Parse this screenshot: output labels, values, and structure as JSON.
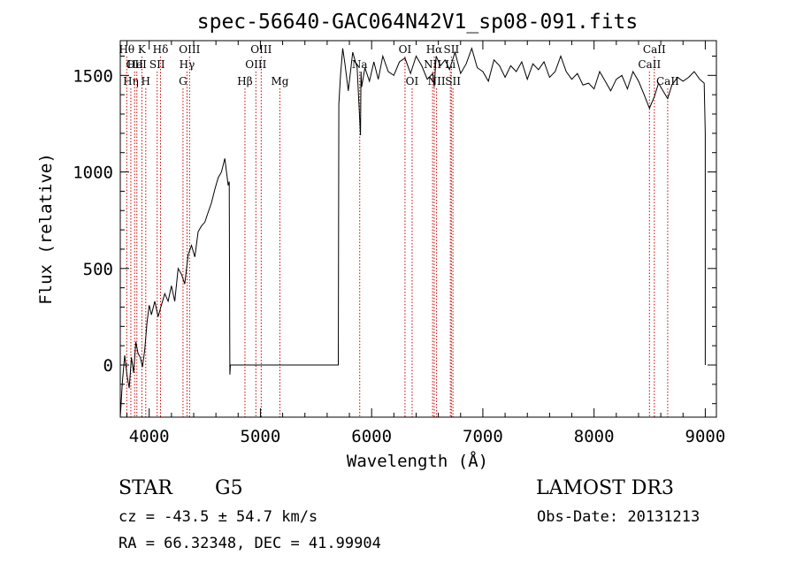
{
  "chart_data": {
    "type": "line",
    "title": "spec-56640-GAC064N42V1_sp08-091.fits",
    "xlabel": "Wavelength (Å)",
    "ylabel": "Flux (relative)",
    "xlim": [
      3740,
      9100
    ],
    "ylim": [
      -270,
      1680
    ],
    "xticks": [
      {
        "value": 4000,
        "label": "4000"
      },
      {
        "value": 5000,
        "label": "5000"
      },
      {
        "value": 6000,
        "label": "6000"
      },
      {
        "value": 7000,
        "label": "7000"
      },
      {
        "value": 8000,
        "label": "8000"
      },
      {
        "value": 9000,
        "label": "9000"
      }
    ],
    "yticks": [
      {
        "value": 0,
        "label": "0"
      },
      {
        "value": 500,
        "label": "500"
      },
      {
        "value": 1000,
        "label": "1000"
      },
      {
        "value": 1500,
        "label": "1500"
      }
    ],
    "line_color": "#000000",
    "marker_color": "#cc0000",
    "series": [
      {
        "name": "flux",
        "x": [
          3740,
          3760,
          3780,
          3800,
          3820,
          3840,
          3860,
          3880,
          3900,
          3920,
          3940,
          3960,
          3980,
          4000,
          4020,
          4050,
          4080,
          4110,
          4140,
          4170,
          4200,
          4230,
          4260,
          4290,
          4320,
          4350,
          4380,
          4410,
          4440,
          4470,
          4500,
          4530,
          4560,
          4590,
          4620,
          4650,
          4680,
          4710,
          4720,
          4725,
          4730,
          5700,
          5705,
          5720,
          5740,
          5760,
          5790,
          5830,
          5870,
          5900,
          5905,
          5910,
          5940,
          5980,
          6020,
          6060,
          6100,
          6150,
          6200,
          6250,
          6300,
          6350,
          6400,
          6450,
          6500,
          6550,
          6563,
          6580,
          6620,
          6660,
          6700,
          6750,
          6800,
          6850,
          6900,
          6950,
          7000,
          7050,
          7100,
          7150,
          7200,
          7250,
          7300,
          7350,
          7400,
          7450,
          7500,
          7550,
          7600,
          7650,
          7700,
          7750,
          7800,
          7850,
          7900,
          7950,
          8000,
          8050,
          8100,
          8150,
          8200,
          8250,
          8300,
          8350,
          8400,
          8450,
          8498,
          8542,
          8580,
          8620,
          8662,
          8700,
          8750,
          8800,
          8850,
          8900,
          8950,
          8990,
          9000,
          9000
        ],
        "y": [
          -270,
          -80,
          50,
          -50,
          -120,
          40,
          -40,
          120,
          60,
          40,
          -10,
          80,
          220,
          310,
          260,
          330,
          250,
          310,
          370,
          330,
          410,
          330,
          500,
          470,
          420,
          570,
          620,
          560,
          690,
          720,
          740,
          790,
          840,
          910,
          970,
          1000,
          1070,
          930,
          950,
          -50,
          0,
          0,
          1350,
          1500,
          1640,
          1560,
          1420,
          1620,
          1540,
          1190,
          1520,
          1440,
          1540,
          1470,
          1570,
          1480,
          1600,
          1520,
          1500,
          1570,
          1590,
          1510,
          1600,
          1550,
          1480,
          1510,
          1440,
          1600,
          1550,
          1580,
          1530,
          1620,
          1510,
          1560,
          1640,
          1540,
          1520,
          1470,
          1580,
          1550,
          1490,
          1550,
          1520,
          1570,
          1480,
          1560,
          1530,
          1570,
          1490,
          1520,
          1600,
          1520,
          1480,
          1510,
          1450,
          1460,
          1430,
          1520,
          1470,
          1420,
          1480,
          1500,
          1430,
          1520,
          1470,
          1400,
          1330,
          1390,
          1460,
          1420,
          1380,
          1450,
          1490,
          1470,
          1490,
          1520,
          1480,
          1460,
          1200,
          0
        ]
      }
    ],
    "line_markers": [
      {
        "wavelength": 3798,
        "label": "Hθ",
        "row": 1
      },
      {
        "wavelength": 3835,
        "label": "Hη",
        "row": 3
      },
      {
        "wavelength": 3869,
        "label": "OII",
        "row": 2
      },
      {
        "wavelength": 3889,
        "label": "HeI",
        "row": 2
      },
      {
        "wavelength": 3934,
        "label": "K",
        "row": 1
      },
      {
        "wavelength": 3969,
        "label": "H",
        "row": 3
      },
      {
        "wavelength": 4072,
        "label": "SII",
        "row": 2
      },
      {
        "wavelength": 4102,
        "label": "Hδ",
        "row": 1
      },
      {
        "wavelength": 4304,
        "label": "G",
        "row": 3
      },
      {
        "wavelength": 4340,
        "label": "Hγ",
        "row": 2
      },
      {
        "wavelength": 4363,
        "label": "OIII",
        "row": 1
      },
      {
        "wavelength": 4861,
        "label": "Hβ",
        "row": 3
      },
      {
        "wavelength": 4959,
        "label": "OIII",
        "row": 2
      },
      {
        "wavelength": 5007,
        "label": "OIII",
        "row": 1
      },
      {
        "wavelength": 5175,
        "label": "Mg",
        "row": 3
      },
      {
        "wavelength": 5893,
        "label": "Na",
        "row": 2
      },
      {
        "wavelength": 6300,
        "label": "OI",
        "row": 1
      },
      {
        "wavelength": 6364,
        "label": "OI",
        "row": 3
      },
      {
        "wavelength": 6548,
        "label": "NII",
        "row": 2
      },
      {
        "wavelength": 6563,
        "label": "Hα",
        "row": 1
      },
      {
        "wavelength": 6584,
        "label": "NII",
        "row": 3
      },
      {
        "wavelength": 6708,
        "label": "Li",
        "row": 2
      },
      {
        "wavelength": 6717,
        "label": "SII",
        "row": 1
      },
      {
        "wavelength": 6731,
        "label": "SII",
        "row": 3
      },
      {
        "wavelength": 8498,
        "label": "CaII",
        "row": 2
      },
      {
        "wavelength": 8542,
        "label": "CaII",
        "row": 1
      },
      {
        "wavelength": 8662,
        "label": "CaII",
        "row": 3
      }
    ]
  },
  "info": {
    "class": "STAR",
    "subclass": "G5",
    "survey": "LAMOST DR3",
    "cz": "cz = -43.5 ± 54.7 km/s",
    "obs_date": "Obs-Date: 20131213",
    "radec": "RA =  66.32348, DEC =  41.99904"
  }
}
